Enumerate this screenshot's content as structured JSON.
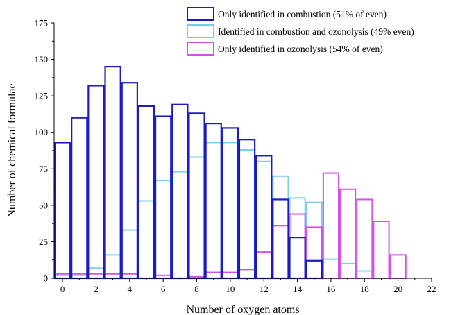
{
  "chart_data": {
    "type": "bar",
    "xlabel": "Number of oxygen atoms",
    "ylabel": "Number of chemical formulae",
    "xlim": [
      -0.5,
      22
    ],
    "ylim": [
      0,
      175
    ],
    "x_ticks": [
      0,
      2,
      4,
      6,
      8,
      10,
      12,
      14,
      16,
      18,
      20,
      22
    ],
    "y_ticks": [
      0,
      25,
      50,
      75,
      100,
      125,
      150,
      175
    ],
    "categories": [
      0,
      1,
      2,
      3,
      4,
      5,
      6,
      7,
      8,
      9,
      10,
      11,
      12,
      13,
      14,
      15,
      16,
      17,
      18,
      19,
      20
    ],
    "series": [
      {
        "name": "Only identified in combustion (51% of even)",
        "color": "#1a1ac8",
        "values": [
          93,
          110,
          132,
          145,
          134,
          118,
          111,
          119,
          113,
          106,
          103,
          95,
          84,
          54,
          28,
          12,
          0,
          0,
          0,
          0,
          0
        ]
      },
      {
        "name": "Identified in combustion and ozonolysis (49% even)",
        "color": "#79cdf0",
        "values": [
          2,
          2,
          7,
          16,
          33,
          53,
          67,
          73,
          83,
          93,
          93,
          88,
          80,
          70,
          55,
          52,
          13,
          10,
          5,
          0,
          0
        ]
      },
      {
        "name": "Only identified in ozonolysis (54% of even)",
        "color": "#d44ee8",
        "values": [
          3,
          3,
          3,
          3,
          3,
          0,
          2,
          0,
          1,
          4,
          4,
          6,
          18,
          36,
          44,
          35,
          72,
          61,
          54,
          39,
          16
        ]
      }
    ],
    "legend_position": "top-right",
    "grid": false
  }
}
